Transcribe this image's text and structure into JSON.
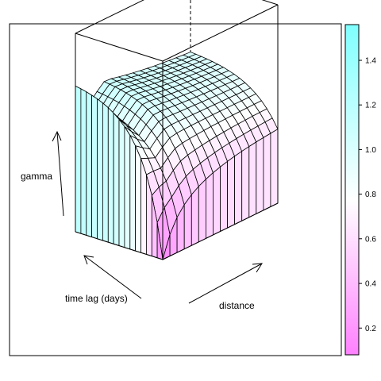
{
  "chart_data": {
    "type": "surface",
    "title": "",
    "axes": {
      "z_label": "gamma",
      "y_label": "time lag (days)",
      "x_label": "distance"
    },
    "grid": {
      "distance_steps": 16,
      "lag_steps": 16
    },
    "surface_description": "semivariogram surface: gamma rises with distance and with time lag, peaking near 1.5 at short distance / long lag",
    "zlim": [
      0.08,
      1.56
    ],
    "colorkey": {
      "ticks": [
        {
          "value": 0.2,
          "label": "0.2"
        },
        {
          "value": 0.4,
          "label": "0.4"
        },
        {
          "value": 0.6,
          "label": "0.6"
        },
        {
          "value": 0.8,
          "label": "0.8"
        },
        {
          "value": 1.0,
          "label": "1.0"
        },
        {
          "value": 1.2,
          "label": "1.2"
        },
        {
          "value": 1.4,
          "label": "1.4"
        }
      ],
      "low_color": "#ff80ff",
      "mid_color": "#ffffff",
      "high_color": "#80ffff"
    },
    "legend_position": "right"
  }
}
